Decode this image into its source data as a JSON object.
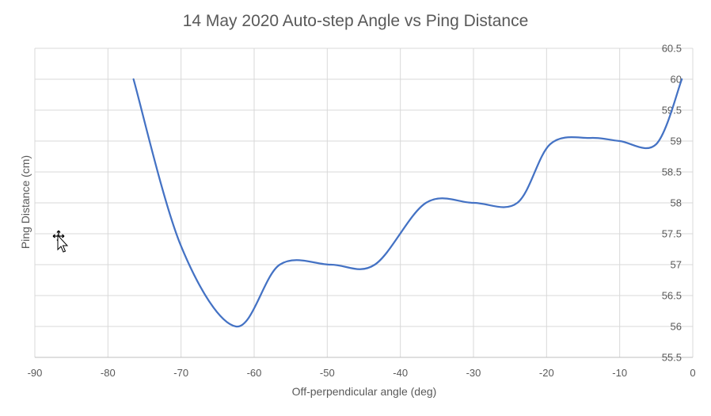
{
  "chart_data": {
    "type": "line",
    "title": "14 May 2020 Auto-step Angle vs Ping Distance",
    "xlabel": "Off-perpendicular angle (deg)",
    "ylabel": "Ping Distance (cm)",
    "xlim": [
      -90,
      0
    ],
    "ylim": [
      55.5,
      60.5
    ],
    "x_ticks": [
      "-90",
      "-80",
      "-70",
      "-60",
      "-50",
      "-40",
      "-30",
      "-20",
      "-10",
      "0"
    ],
    "y_ticks": [
      "55.5",
      "56",
      "56.5",
      "57",
      "57.5",
      "58",
      "58.5",
      "59",
      "59.5",
      "60",
      "60.5"
    ],
    "y_axis_position": "right",
    "grid": true,
    "legend": "none",
    "smoothed": true,
    "series": [
      {
        "color": "#4472c4",
        "points": [
          [
            -76.5,
            60.0
          ],
          [
            -70.0,
            57.3
          ],
          [
            -62.5,
            56.0
          ],
          [
            -56.5,
            57.0
          ],
          [
            -49.5,
            57.0
          ],
          [
            -43.5,
            57.0
          ],
          [
            -36.5,
            58.0
          ],
          [
            -30.0,
            58.0
          ],
          [
            -24.0,
            58.0
          ],
          [
            -19.5,
            58.95
          ],
          [
            -14.0,
            59.05
          ],
          [
            -10.0,
            59.0
          ],
          [
            -5.0,
            58.95
          ],
          [
            -1.5,
            60.0
          ]
        ]
      }
    ]
  }
}
